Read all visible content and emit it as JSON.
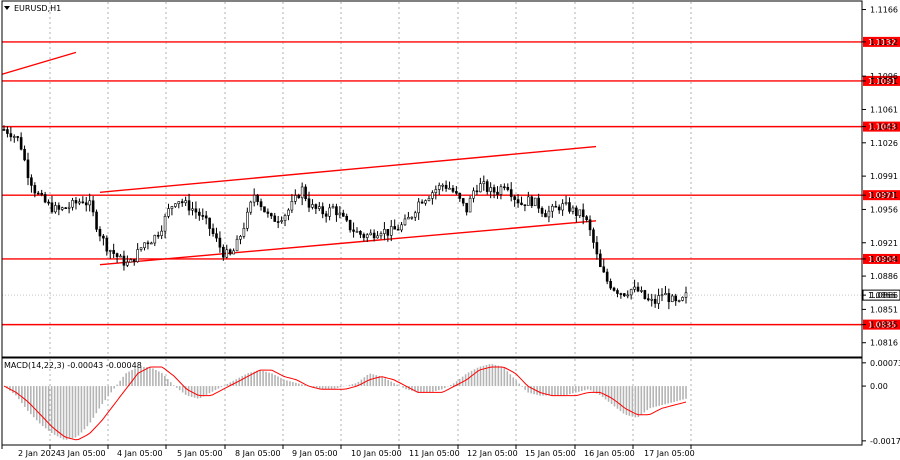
{
  "symbol": "EURUSD,H1",
  "macd_label": "MACD(14,22,3) -0.00043 -0.00048",
  "current_price": "1.0866",
  "price_ticks": [
    "1.1166",
    "1.1132",
    "1.1096",
    "1.1091",
    "1.1061",
    "1.1043",
    "1.1026",
    "1.0991",
    "1.0971",
    "1.0956",
    "1.0921",
    "1.0904",
    "1.0886",
    "1.0866",
    "1.0851",
    "1.0835",
    "1.0816"
  ],
  "macd_ticks": [
    "0.00073",
    "0.00",
    "-0.00172"
  ],
  "time_labels": [
    "2 Jan 2024",
    "3 Jan 05:00",
    "4 Jan 05:00",
    "5 Jan 05:00",
    "8 Jan 05:00",
    "9 Jan 05:00",
    "10 Jan 05:00",
    "11 Jan 05:00",
    "12 Jan 05:00",
    "15 Jan 05:00",
    "16 Jan 05:00",
    "17 Jan 05:00"
  ],
  "colors": {
    "level": "#ff0000",
    "bull": "#000000",
    "bear": "#000000",
    "macd_hist": "#b4b4b4",
    "signal": "#ff0000",
    "grid": "#b0b0b0"
  },
  "chart_data": {
    "type": "candlestick",
    "title": "EURUSD,H1",
    "ylim": [
      1.0801,
      1.1176
    ],
    "horizontal_levels": [
      1.1132,
      1.1091,
      1.1043,
      1.0971,
      1.0904,
      1.0835
    ],
    "closes": [
      1.104,
      1.1036,
      1.1028,
      1.0995,
      1.0975,
      1.0965,
      1.0958,
      1.0955,
      1.0958,
      1.0962,
      1.0966,
      1.096,
      1.0935,
      1.0918,
      1.091,
      1.0902,
      1.0898,
      1.091,
      1.0922,
      1.0925,
      1.0936,
      1.0955,
      1.0968,
      1.0962,
      1.0957,
      1.095,
      1.094,
      1.0925,
      1.091,
      1.0907,
      1.0925,
      1.0948,
      1.0974,
      1.0958,
      1.0945,
      1.0947,
      1.0952,
      1.0964,
      1.0978,
      1.096,
      1.0955,
      1.0952,
      1.0958,
      1.0948,
      1.0938,
      1.0932,
      1.0928,
      1.093,
      1.0935,
      1.0932,
      1.0935,
      1.094,
      1.095,
      1.0965,
      1.097,
      1.0977,
      1.0982,
      1.0978,
      1.0967,
      1.0955,
      1.0978,
      1.0982,
      1.0975,
      1.0975,
      1.0985,
      1.097,
      1.0962,
      1.0966,
      1.0962,
      1.0952,
      1.0955,
      1.096,
      1.0958,
      1.0952,
      1.095,
      1.0927,
      1.0895,
      1.088,
      1.0872,
      1.0868,
      1.0872,
      1.087,
      1.086,
      1.0858,
      1.0868,
      1.0862,
      1.0855,
      1.0865
    ],
    "macd": {
      "ylim": [
        -0.00185,
        0.00085
      ],
      "histogram": [
        0.0,
        -0.0003,
        -0.0008,
        -0.0012,
        -0.0015,
        -0.0017,
        -0.0016,
        -0.0012,
        -0.0006,
        -0.0001,
        0.0004,
        0.0006,
        0.0006,
        0.0004,
        0.0,
        -0.0003,
        -0.0004,
        -0.0002,
        0.0,
        0.0002,
        0.0004,
        0.0005,
        0.0004,
        0.0002,
        0.0001,
        0.0,
        -0.0001,
        -0.0001,
        0.0,
        0.0001,
        0.0004,
        0.0003,
        0.0001,
        -0.0001,
        -0.0002,
        -0.0002,
        -0.0001,
        0.0001,
        0.0004,
        0.0006,
        0.0007,
        0.0006,
        0.0002,
        -0.0002,
        -0.0003,
        -0.0003,
        -0.0003,
        -0.0002,
        -0.0001,
        -0.0003,
        -0.0006,
        -0.0009,
        -0.001,
        -0.0007,
        -0.0006,
        -0.0005,
        -0.0004
      ],
      "signal": [
        0.0,
        -0.0002,
        -0.0005,
        -0.0009,
        -0.0013,
        -0.0016,
        -0.0017,
        -0.0015,
        -0.0011,
        -0.0006,
        -0.0001,
        0.0004,
        0.0006,
        0.0006,
        0.0003,
        -0.0001,
        -0.0003,
        -0.0003,
        -0.0001,
        0.0001,
        0.0003,
        0.0005,
        0.0005,
        0.0003,
        0.0002,
        0.0,
        -0.0001,
        -0.0001,
        -0.0001,
        0.0,
        0.0002,
        0.0003,
        0.0002,
        0.0,
        -0.0002,
        -0.0002,
        -0.0002,
        0.0,
        0.0002,
        0.0005,
        0.0006,
        0.0006,
        0.0004,
        0.0,
        -0.0002,
        -0.0003,
        -0.0003,
        -0.0003,
        -0.0002,
        -0.0002,
        -0.0004,
        -0.0007,
        -0.0009,
        -0.0009,
        -0.0007,
        -0.0006,
        -0.0005
      ]
    }
  }
}
